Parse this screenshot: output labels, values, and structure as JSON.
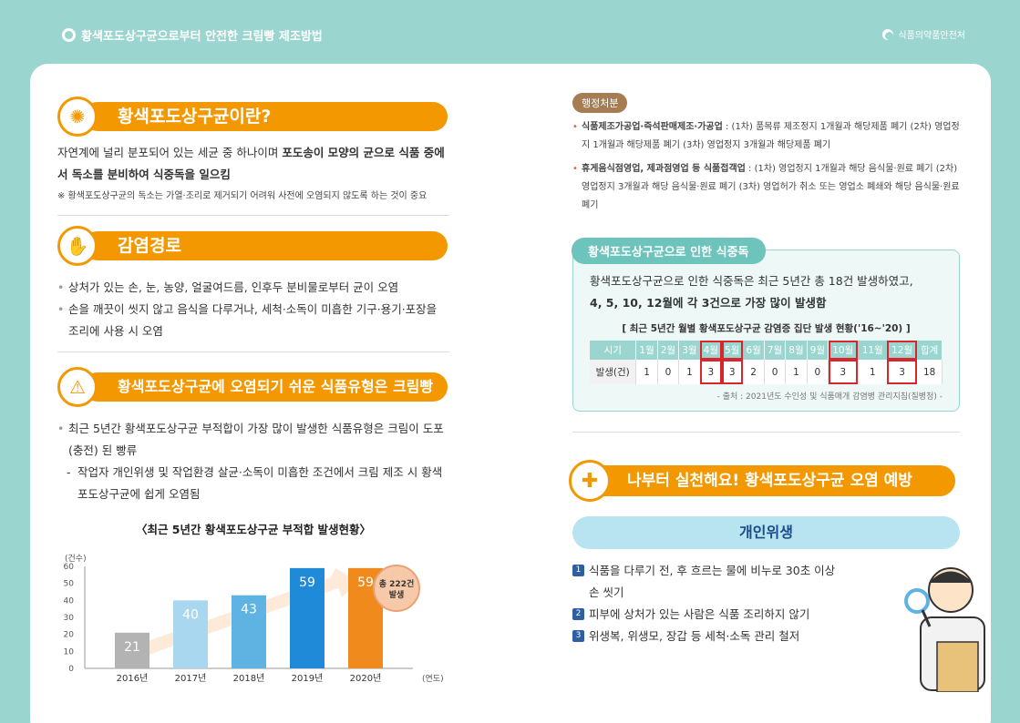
{
  "header": {
    "title": "황색포도상구균으로부터 안전한 크림빵 제조방법",
    "agency": "식품의약품안전처"
  },
  "section1": {
    "title": "황색포도상구균이란?",
    "body_normal_1": "자연계에 널리 분포되어 있는 세균 중 하나이며 ",
    "body_bold_1": "포도송이 모양의 균으로 식품 중에서 독소를 분비하여 식중독을 일으킴",
    "note": "※ 황색포도상구균의 독소는 가열·조리로 제거되기 어려워 사전에 오염되지 않도록 하는 것이 중요"
  },
  "section2": {
    "title": "감염경로",
    "bullets": [
      "상처가 있는 손, 눈, 농양, 얼굴여드름, 인후두 분비물로부터 균이 오염",
      "손을 깨끗이 씻지 않고 음식을 다루거나, 세척·소독이 미흡한 기구·용기·포장을 조리에 사용 시 오염"
    ]
  },
  "section3": {
    "title": "황색포도상구균에 오염되기 쉬운 식품유형은 크림빵",
    "bullet": "최근 5년간 황색포도상구균 부적합이 가장 많이 발생한 식품유형은 크림이 도포(충전) 된 빵류",
    "dash": "작업자 개인위생 및 작업환경 살균·소독이 미흡한 조건에서 크림 제조 시 황색포도상구균에 쉽게 오염됨"
  },
  "chart_data": {
    "type": "bar",
    "title": "〈최근 5년간 황색포도상구균 부적합 발생현황〉",
    "ylabel": "(건수)",
    "xlabel": "(연도)",
    "categories": [
      "2016년",
      "2017년",
      "2018년",
      "2019년",
      "2020년"
    ],
    "values": [
      21,
      40,
      43,
      59,
      59
    ],
    "ylim": [
      0,
      60
    ],
    "yticks": [
      "0",
      "10",
      "20",
      "30",
      "40",
      "50",
      "60"
    ],
    "bar_colors": [
      "#b3b3b3",
      "#a9d7f0",
      "#5fb3e3",
      "#1f8ad8",
      "#f08a1c"
    ],
    "total_badge": [
      "총 222건",
      "발생"
    ]
  },
  "admin": {
    "pill": "행정처분",
    "items": [
      {
        "bold": "식품제조가공업·즉석판매제조·가공업",
        "text": " : (1차) 품목류 제조정지 1개월과 해당제품 폐기 (2차) 영업정지 1개월과 해당제품 폐기 (3차) 영업정지 3개월과 해당제품 폐기"
      },
      {
        "bold": "휴게음식점영업, 제과점영업 등 식품접객업",
        "text": " : (1차) 영업정지 1개월과 해당 음식물·원료 폐기 (2차) 영업정지 3개월과 해당 음식물·원료 폐기 (3차) 영업허가 취소 또는 영업소 폐쇄와 해당 음식물·원료 폐기"
      }
    ]
  },
  "poisoning": {
    "tab": "황색포도상구균으로 인한 식중독",
    "text_normal": "황색포도상구균으로 인한 식중독은 최근 5년간 총 18건 발생하였고,",
    "text_bold": "4, 5, 10, 12월에 각 3건으로 가장 많이 발생함",
    "table_title": "[ 최근 5년간 월별 황색포도상구균 감염증 집단 발생 현황('16~'20) ]",
    "header": [
      "시기",
      "1월",
      "2월",
      "3월",
      "4월",
      "5월",
      "6월",
      "7월",
      "8월",
      "9월",
      "10월",
      "11월",
      "12월",
      "합계"
    ],
    "row_label": "발생(건)",
    "row": [
      "1",
      "0",
      "1",
      "3",
      "3",
      "2",
      "0",
      "1",
      "0",
      "3",
      "1",
      "3",
      "18"
    ],
    "source": "- 출처 : 2021년도 수인성 및 식품매개 감염병 관리지침(질병청) -"
  },
  "prevention": {
    "title": "나부터 실천해요! 황색포도상구균 오염 예방",
    "hygiene": "개인위생",
    "items": [
      {
        "num": "1",
        "text": "식품을 다루기 전, 후 흐르는 물에 비누로 30초 이상 손 씻기"
      },
      {
        "num": "2",
        "text": "피부에 상처가 있는 사람은 식품 조리하지 않기"
      },
      {
        "num": "3",
        "text": "위생복, 위생모, 장갑 등 세척·소독 관리 철저"
      }
    ]
  }
}
